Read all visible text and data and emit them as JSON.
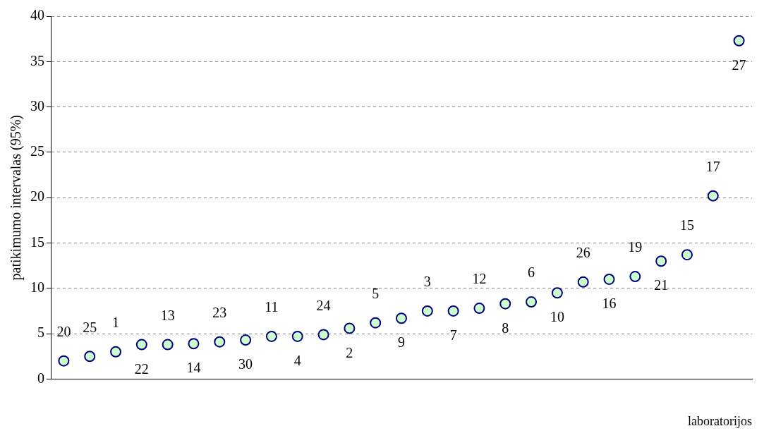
{
  "chart_data": {
    "type": "scatter",
    "xlabel": "laboratorijos",
    "ylabel": "patikimumo intervalas (95%)",
    "categories": [
      null,
      null,
      null,
      null,
      null,
      null,
      null,
      null,
      null,
      null,
      null,
      null,
      null,
      null,
      null,
      null,
      null,
      null,
      null,
      null,
      null,
      null,
      null,
      null,
      null,
      null,
      null
    ],
    "values": [
      2.0,
      2.5,
      3.0,
      3.8,
      3.8,
      3.9,
      4.1,
      4.3,
      4.7,
      4.7,
      4.9,
      5.6,
      6.2,
      6.7,
      7.5,
      7.5,
      7.8,
      8.3,
      8.5,
      9.5,
      10.7,
      11.0,
      11.3,
      13.0,
      13.7,
      20.2,
      37.3
    ],
    "annotations": [
      {
        "text": "20",
        "y": 2.0
      },
      {
        "text": "25",
        "y": 2.5
      },
      {
        "text": "1",
        "y": 3.0
      },
      {
        "text": "22",
        "y": 3.8
      },
      {
        "text": "13",
        "y": 3.8
      },
      {
        "text": "14",
        "y": 3.9
      },
      {
        "text": "23",
        "y": 4.1
      },
      {
        "text": "30",
        "y": 4.3
      },
      {
        "text": "11",
        "y": 4.7
      },
      {
        "text": "4",
        "y": 4.7
      },
      {
        "text": "24",
        "y": 4.9
      },
      {
        "text": "2",
        "y": 5.6
      },
      {
        "text": "5",
        "y": 6.2
      },
      {
        "text": "9",
        "y": 6.7
      },
      {
        "text": "3",
        "y": 7.5
      },
      {
        "text": "7",
        "y": 7.5
      },
      {
        "text": "12",
        "y": 7.8
      },
      {
        "text": "8",
        "y": 8.3
      },
      {
        "text": "6",
        "y": 8.5
      },
      {
        "text": "10",
        "y": 9.5
      },
      {
        "text": "26",
        "y": 10.7
      },
      {
        "text": "16",
        "y": 11.0
      },
      {
        "text": "19",
        "y": 11.3
      },
      {
        "text": "21",
        "y": 13.0
      },
      {
        "text": "15",
        "y": 13.7
      },
      {
        "text": "17",
        "y": 20.2
      },
      {
        "text": "27",
        "y": 37.3
      }
    ],
    "color": "#ccffcc",
    "marker": "circle",
    "ylim": [
      0,
      40
    ],
    "yticks": [
      0,
      5,
      10,
      15,
      20,
      25,
      30,
      35,
      40
    ],
    "grid": "y",
    "legend": false
  }
}
